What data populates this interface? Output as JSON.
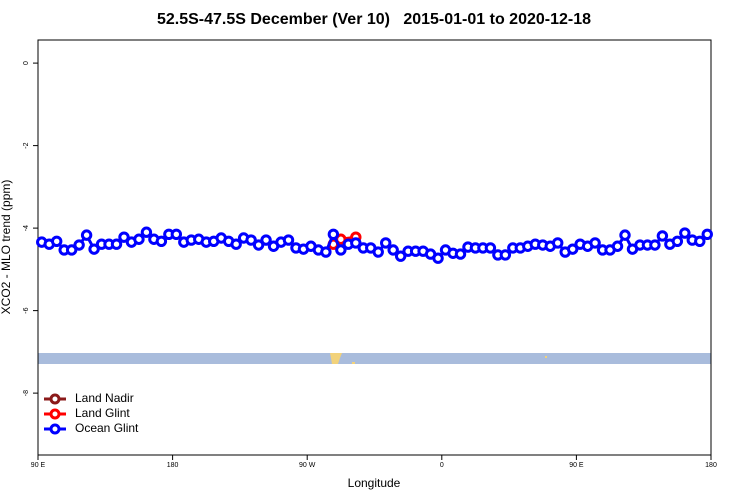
{
  "chart_data": {
    "type": "line",
    "title": "52.5S-47.5S December (Ver 10)   2015-01-01 to 2020-12-18",
    "x_label": "Longitude",
    "y_label": "XCO2 - MLO trend (ppm)",
    "xlim": [
      90,
      540
    ],
    "ylim": [
      -9.5,
      0.56
    ],
    "xticks": [
      {
        "value": 90,
        "label": "90 E"
      },
      {
        "value": 180,
        "label": "180"
      },
      {
        "value": 270,
        "label": "90 W"
      },
      {
        "value": 360,
        "label": "0"
      },
      {
        "value": 450,
        "label": "90 E"
      },
      {
        "value": 540,
        "label": "180"
      }
    ],
    "yticks": [
      0,
      -2,
      -4,
      -6,
      -8
    ],
    "legend": "bottomleft",
    "series": [
      {
        "name": "Land Nadir",
        "color": "#8b1a1a",
        "x": [],
        "values": []
      },
      {
        "name": "Land Glint",
        "color": "#ff0000",
        "x": [
          287.5,
          292.5,
          302.5
        ],
        "values": [
          -4.39,
          -4.27,
          -4.22
        ]
      },
      {
        "name": "Ocean Glint",
        "color": "#0000ff",
        "x": [
          92.5,
          97.5,
          102.5,
          107.5,
          112.5,
          117.5,
          122.5,
          127.5,
          132.5,
          137.5,
          142.5,
          147.5,
          152.5,
          157.5,
          162.5,
          167.5,
          172.5,
          177.5,
          182.5,
          187.5,
          192.5,
          197.5,
          202.5,
          207.5,
          212.5,
          217.5,
          222.5,
          227.5,
          232.5,
          237.5,
          242.5,
          247.5,
          252.5,
          257.5,
          262.5,
          267.5,
          272.5,
          277.5,
          282.5,
          287.5,
          292.5,
          297.5,
          302.5,
          307.5,
          312.5,
          317.5,
          322.5,
          327.5,
          332.5,
          337.5,
          342.5,
          347.5,
          352.5,
          357.5,
          362.5,
          367.5,
          372.5,
          377.5,
          382.5,
          387.5,
          392.5,
          397.5,
          402.5,
          407.5,
          412.5,
          417.5,
          422.5,
          427.5,
          432.5,
          437.5,
          442.5,
          447.5,
          452.5,
          457.5,
          462.5,
          467.5,
          472.5,
          477.5,
          482.5,
          487.5,
          492.5,
          497.5,
          502.5,
          507.5,
          512.5,
          517.5,
          522.5,
          527.5,
          532.5,
          537.5
        ],
        "values": [
          -4.34,
          -4.39,
          -4.32,
          -4.53,
          -4.53,
          -4.41,
          -4.17,
          -4.51,
          -4.39,
          -4.39,
          -4.39,
          -4.22,
          -4.34,
          -4.27,
          -4.1,
          -4.27,
          -4.32,
          -4.15,
          -4.15,
          -4.34,
          -4.29,
          -4.27,
          -4.34,
          -4.32,
          -4.24,
          -4.32,
          -4.39,
          -4.24,
          -4.29,
          -4.41,
          -4.29,
          -4.44,
          -4.34,
          -4.29,
          -4.48,
          -4.51,
          -4.44,
          -4.53,
          -4.58,
          -4.15,
          -4.53,
          -4.39,
          -4.36,
          -4.48,
          -4.48,
          -4.58,
          -4.36,
          -4.53,
          -4.68,
          -4.56,
          -4.56,
          -4.56,
          -4.63,
          -4.73,
          -4.53,
          -4.61,
          -4.63,
          -4.46,
          -4.48,
          -4.48,
          -4.48,
          -4.65,
          -4.65,
          -4.48,
          -4.48,
          -4.44,
          -4.39,
          -4.41,
          -4.44,
          -4.36,
          -4.58,
          -4.51,
          -4.39,
          -4.44,
          -4.36,
          -4.53,
          -4.53,
          -4.44,
          -4.17,
          -4.51,
          -4.41,
          -4.41,
          -4.41,
          -4.19,
          -4.39,
          -4.32,
          -4.12,
          -4.29,
          -4.32,
          -4.15
        ]
      }
    ]
  }
}
